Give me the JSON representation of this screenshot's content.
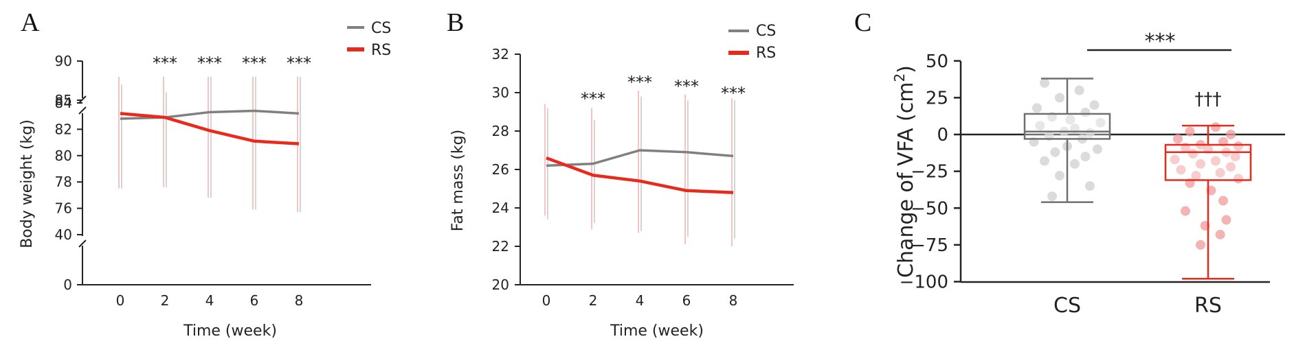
{
  "figure": {
    "panels": [
      "A",
      "B",
      "C"
    ]
  },
  "colors": {
    "cs": "#808080",
    "rs": "#e8291c",
    "axis": "#222222",
    "cs_points": "#cfcfcf",
    "rs_points": "#f29a9a"
  },
  "chart_data": [
    {
      "panel": "A",
      "type": "line",
      "title": "",
      "xlabel": "Time (week)",
      "ylabel": "Body weight (kg)",
      "x": [
        0,
        2,
        4,
        6,
        8
      ],
      "x_tick_labels": [
        "0",
        "2",
        "4",
        "6",
        "8"
      ],
      "ylim_lower": [
        0,
        40
      ],
      "ylim_middle": [
        74,
        84
      ],
      "ylim_upper": [
        85,
        90
      ],
      "y_ticks_lower": [
        0,
        40
      ],
      "y_ticks_middle": [
        76,
        78,
        80,
        82,
        84
      ],
      "y_ticks_upper": [
        85,
        90
      ],
      "y_tick_labels_lower": [
        "0",
        "40"
      ],
      "y_tick_labels_middle": [
        "76",
        "78",
        "80",
        "82",
        "84"
      ],
      "y_tick_labels_upper": [
        "85",
        "90"
      ],
      "axis_breaks": true,
      "legend": [
        "CS",
        "RS"
      ],
      "legend_position": "top-right",
      "series": [
        {
          "name": "CS",
          "values": [
            82.8,
            82.9,
            83.3,
            83.4,
            83.2
          ],
          "error_bar_visible_to": [
            87,
            86,
            88,
            88,
            88
          ]
        },
        {
          "name": "RS",
          "values": [
            83.2,
            82.9,
            81.9,
            81.1,
            80.9
          ],
          "error_bar_visible_to": [
            88,
            88,
            88,
            88,
            88
          ]
        }
      ],
      "significance_labels": [
        "",
        "***",
        "***",
        "***",
        "***"
      ]
    },
    {
      "panel": "B",
      "type": "line",
      "title": "",
      "xlabel": "Time (week)",
      "ylabel": "Fat mass (kg)",
      "x": [
        0,
        2,
        4,
        6,
        8
      ],
      "x_tick_labels": [
        "0",
        "2",
        "4",
        "6",
        "8"
      ],
      "ylim": [
        20,
        32
      ],
      "y_ticks": [
        20,
        22,
        24,
        26,
        28,
        30,
        32
      ],
      "y_tick_labels": [
        "20",
        "22",
        "24",
        "26",
        "28",
        "30",
        "32"
      ],
      "legend": [
        "CS",
        "RS"
      ],
      "legend_position": "top-right",
      "series": [
        {
          "name": "CS",
          "values": [
            26.2,
            26.3,
            27.0,
            26.9,
            26.7
          ],
          "error_low": [
            23.4,
            23.2,
            22.8,
            22.5,
            22.4
          ],
          "error_high": [
            29.2,
            28.6,
            29.8,
            29.6,
            29.6
          ]
        },
        {
          "name": "RS",
          "values": [
            26.6,
            25.7,
            25.4,
            24.9,
            24.8
          ],
          "error_low": [
            23.6,
            22.9,
            22.7,
            22.1,
            22.0
          ],
          "error_high": [
            29.4,
            29.2,
            30.1,
            29.9,
            29.7
          ]
        }
      ],
      "significance_labels": [
        "",
        "***",
        "***",
        "***",
        "***"
      ]
    },
    {
      "panel": "C",
      "type": "box",
      "title": "",
      "xlabel": "",
      "ylabel_prefix": "Change of VFA (cm",
      "ylabel_superscript": "2",
      "ylabel_suffix": ")",
      "categories": [
        "CS",
        "RS"
      ],
      "ylim": [
        -100,
        50
      ],
      "y_ticks": [
        50,
        25,
        0,
        -25,
        -50,
        -75,
        -100
      ],
      "y_tick_labels": [
        "50",
        "25",
        "0",
        "−25",
        "−50",
        "−75",
        "−100"
      ],
      "reference_line": 0,
      "boxes": [
        {
          "name": "CS",
          "min": -46,
          "q1": -3,
          "median": 2,
          "q3": 14,
          "max": 38
        },
        {
          "name": "RS",
          "min": -98,
          "q1": -31,
          "median": -12,
          "q3": -7,
          "max": 6
        }
      ],
      "points": {
        "CS": [
          [
            -0.15,
            35
          ],
          [
            0.08,
            30
          ],
          [
            -0.05,
            25
          ],
          [
            0.18,
            20
          ],
          [
            -0.2,
            18
          ],
          [
            0.12,
            15
          ],
          [
            -0.1,
            12
          ],
          [
            0.02,
            10
          ],
          [
            0.22,
            8
          ],
          [
            -0.18,
            6
          ],
          [
            0.05,
            4
          ],
          [
            -0.02,
            2
          ],
          [
            0.15,
            1
          ],
          [
            -0.12,
            -1
          ],
          [
            0.1,
            -3
          ],
          [
            -0.22,
            -5
          ],
          [
            0.0,
            -8
          ],
          [
            0.2,
            -10
          ],
          [
            -0.08,
            -12
          ],
          [
            0.12,
            -15
          ],
          [
            -0.15,
            -18
          ],
          [
            0.05,
            -20
          ],
          [
            -0.05,
            -28
          ],
          [
            0.15,
            -35
          ],
          [
            -0.1,
            -42
          ]
        ],
        "RS": [
          [
            0.05,
            5
          ],
          [
            -0.12,
            2
          ],
          [
            0.15,
            0
          ],
          [
            -0.2,
            -3
          ],
          [
            0.1,
            -5
          ],
          [
            -0.05,
            -7
          ],
          [
            0.2,
            -8
          ],
          [
            -0.15,
            -9
          ],
          [
            0.0,
            -10
          ],
          [
            0.12,
            -12
          ],
          [
            -0.1,
            -13
          ],
          [
            0.18,
            -15
          ],
          [
            -0.22,
            -17
          ],
          [
            0.05,
            -18
          ],
          [
            -0.05,
            -20
          ],
          [
            0.15,
            -22
          ],
          [
            -0.18,
            -24
          ],
          [
            0.08,
            -26
          ],
          [
            -0.08,
            -28
          ],
          [
            0.2,
            -30
          ],
          [
            -0.12,
            -33
          ],
          [
            0.02,
            -38
          ],
          [
            0.1,
            -45
          ],
          [
            -0.15,
            -52
          ],
          [
            0.12,
            -58
          ],
          [
            -0.02,
            -62
          ],
          [
            0.08,
            -68
          ],
          [
            -0.05,
            -75
          ]
        ]
      },
      "significance_between": "***",
      "significance_within_rs": "†††"
    }
  ]
}
